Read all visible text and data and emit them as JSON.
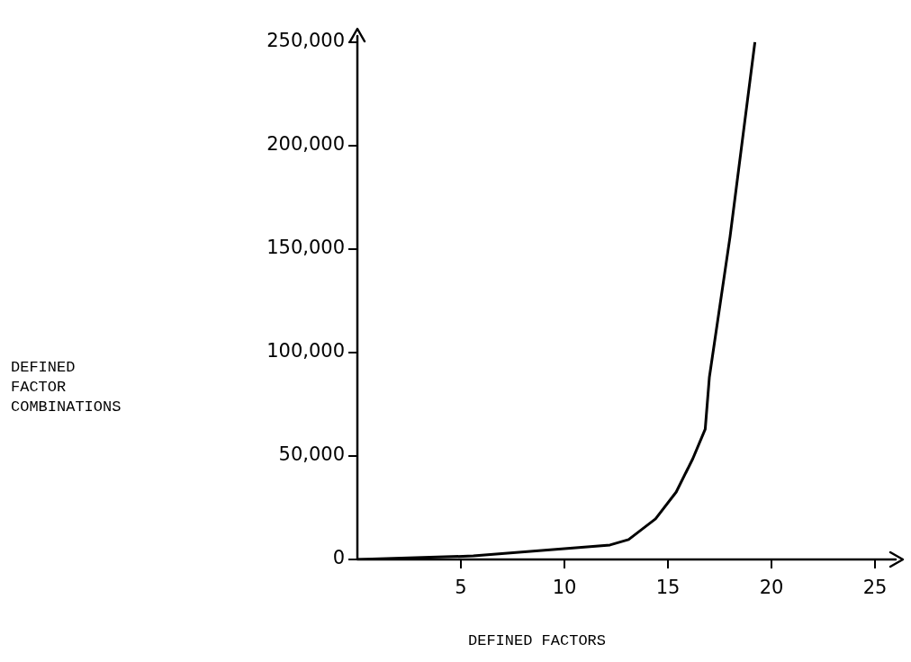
{
  "chart_data": {
    "type": "line",
    "xlabel": "DEFINED FACTORS",
    "annotations": [
      "DEFINED\nFACTOR\nCOMBINATIONS"
    ],
    "xlim": [
      0,
      26
    ],
    "ylim": [
      0,
      253000
    ],
    "xticks": [
      5,
      10,
      15,
      20,
      25
    ],
    "yticks": [
      {
        "value": 0,
        "label": "0"
      },
      {
        "value": 50000,
        "label": "50,000"
      },
      {
        "value": 100000,
        "label": "100,000"
      },
      {
        "value": 150000,
        "label": "150,000"
      },
      {
        "value": 200000,
        "label": "200,000"
      },
      {
        "value": 250000,
        "label": "250,000"
      }
    ],
    "grid": false,
    "legend": false,
    "series": [
      {
        "color": "#000000",
        "x": [
          0,
          5.6,
          10,
          12.2,
          13.1,
          14.4,
          15.4,
          16.2,
          16.8,
          17.0,
          18.0,
          19.2
        ],
        "values": [
          0,
          1700,
          5200,
          7000,
          9600,
          19600,
          32600,
          48700,
          63000,
          88000,
          156000,
          250000
        ]
      }
    ]
  }
}
